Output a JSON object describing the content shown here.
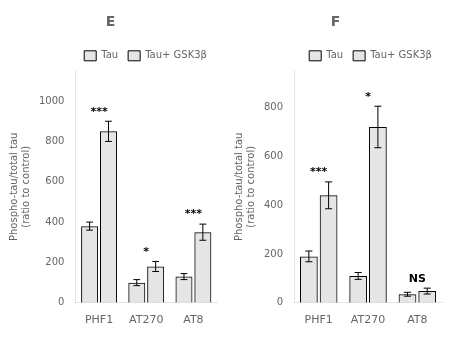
{
  "chart_data": [
    {
      "type": "bar",
      "title": "E",
      "categories": [
        "PHF1",
        "AT270",
        "AT8"
      ],
      "series": [
        {
          "name": "Tau",
          "values": [
            380,
            100,
            130
          ],
          "errors": [
            20,
            15,
            15
          ]
        },
        {
          "name": "Tau+\nGSK3β",
          "values": [
            850,
            180,
            350
          ],
          "errors": [
            50,
            25,
            40
          ]
        }
      ],
      "ylabel": "Phospho-tau/total tau\n(ratio to control)",
      "ylim": [
        0,
        1150
      ],
      "yticks": [
        0,
        200,
        400,
        600,
        800,
        1000
      ],
      "annotations": [
        {
          "category": "PHF1",
          "text": "***"
        },
        {
          "category": "AT270",
          "text": "*"
        },
        {
          "category": "AT8",
          "text": "***"
        }
      ],
      "legend": "upper right",
      "grid": false
    },
    {
      "type": "bar",
      "title": "F",
      "categories": [
        "PHF1",
        "AT270",
        "AT8"
      ],
      "series": [
        {
          "name": "Tau",
          "values": [
            190,
            110,
            35
          ],
          "errors": [
            22,
            14,
            8
          ]
        },
        {
          "name": "Tau+\nGSK3β",
          "values": [
            440,
            720,
            48
          ],
          "errors": [
            55,
            85,
            12
          ]
        }
      ],
      "ylabel": "Phospho-tau/total tau\n(ratio to control)",
      "ylim": [
        0,
        950
      ],
      "yticks": [
        0,
        200,
        400,
        600,
        800
      ],
      "annotations": [
        {
          "category": "PHF1",
          "text": "***"
        },
        {
          "category": "AT270",
          "text": "*"
        },
        {
          "category": "AT8",
          "text": "NS"
        }
      ],
      "legend": "upper right",
      "grid": false
    }
  ]
}
